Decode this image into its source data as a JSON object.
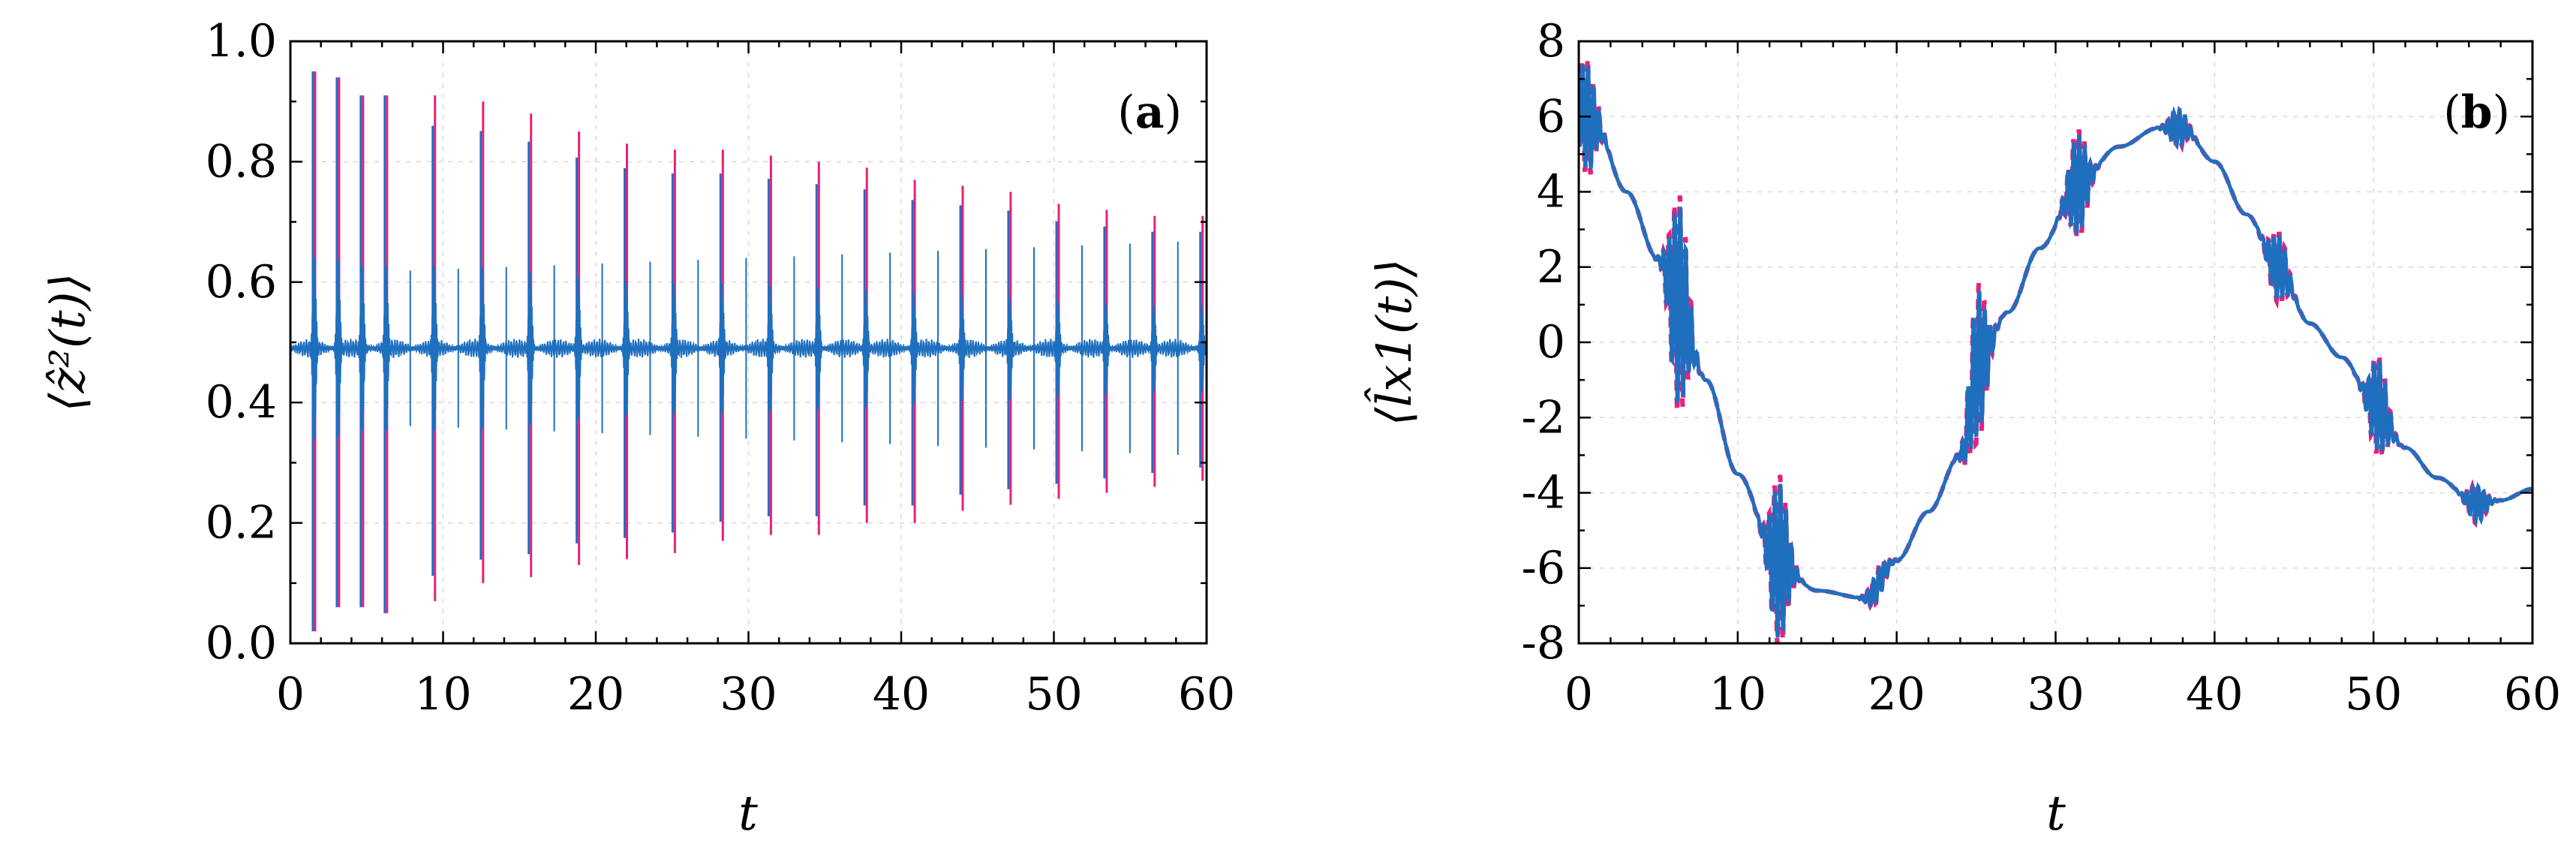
{
  "colors": {
    "series_a": "#e8207a",
    "series_b": "#1f6fbf",
    "frame": "#000000"
  },
  "chart_data": [
    {
      "type": "line",
      "panel_label": "a",
      "xlabel": "t",
      "ylabel": "⟨ẑ²(t)⟩",
      "xlim": [
        0,
        60
      ],
      "ylim": [
        0,
        1
      ],
      "xticks": [
        0,
        10,
        20,
        30,
        40,
        50,
        60
      ],
      "xtick_labels": [
        "0",
        "10",
        "20",
        "30",
        "40",
        "50",
        "60"
      ],
      "yticks": [
        0,
        0.2,
        0.4,
        0.6,
        0.8,
        1.0
      ],
      "ytick_labels": [
        "0.0",
        "0.2",
        "0.4",
        "0.6",
        "0.8",
        "1.0"
      ],
      "baseline": 0.49,
      "revival_period": 1.57,
      "revival_peaks": {
        "t": [
          1.57,
          3.14,
          4.71,
          6.28,
          9.42,
          12.57,
          15.71,
          18.85,
          21.99,
          25.13,
          28.27,
          31.42,
          34.56,
          37.7,
          40.84,
          43.98,
          47.12,
          50.27,
          53.41,
          56.55,
          59.69
        ],
        "max": [
          0.95,
          0.94,
          0.91,
          0.91,
          0.91,
          0.9,
          0.88,
          0.85,
          0.83,
          0.82,
          0.82,
          0.81,
          0.8,
          0.79,
          0.77,
          0.76,
          0.75,
          0.73,
          0.72,
          0.71,
          0.71
        ],
        "min": [
          0.02,
          0.06,
          0.06,
          0.05,
          0.07,
          0.1,
          0.11,
          0.13,
          0.14,
          0.15,
          0.17,
          0.18,
          0.18,
          0.2,
          0.2,
          0.22,
          0.23,
          0.24,
          0.25,
          0.26,
          0.27
        ]
      },
      "series": [
        {
          "name": "pink",
          "color": "#e8207a"
        },
        {
          "name": "blue",
          "color": "#1f6fbf"
        }
      ]
    },
    {
      "type": "line",
      "panel_label": "b",
      "xlabel": "t",
      "ylabel": "⟨l̂x1(t)⟩",
      "xlim": [
        0,
        60
      ],
      "ylim": [
        -8,
        8
      ],
      "xticks": [
        0,
        10,
        20,
        30,
        40,
        50,
        60
      ],
      "xtick_labels": [
        "0",
        "10",
        "20",
        "30",
        "40",
        "50",
        "60"
      ],
      "yticks": [
        -8,
        -6,
        -4,
        -2,
        0,
        2,
        4,
        6,
        8
      ],
      "ytick_labels": [
        "-8",
        "-6",
        "-4",
        "-2",
        "0",
        "2",
        "4",
        "6",
        "8"
      ],
      "envelope": {
        "t": [
          0,
          1,
          3,
          5,
          6.3,
          8,
          10,
          12.5,
          15,
          18,
          20,
          22,
          24,
          25.2,
          27,
          29,
          31.4,
          34,
          36.5,
          38,
          40,
          42,
          44,
          46,
          48,
          50,
          52,
          54,
          56.5,
          58,
          60
        ],
        "value": [
          6.2,
          5.8,
          4.0,
          2.2,
          1.0,
          -1.0,
          -3.5,
          -5.8,
          -6.6,
          -6.8,
          -5.8,
          -4.5,
          -3.0,
          -0.5,
          0.8,
          2.5,
          4.2,
          5.2,
          5.7,
          5.7,
          4.8,
          3.4,
          2.0,
          0.5,
          -0.4,
          -1.6,
          -2.8,
          -3.6,
          -4.3,
          -4.2,
          -3.9
        ]
      },
      "oscillation_bursts": {
        "t": [
          0.5,
          6.3,
          12.6,
          18.8,
          25.1,
          31.4,
          37.7,
          44.0,
          50.3,
          56.5
        ],
        "amplitude": [
          1.5,
          2.8,
          2.2,
          0.4,
          2.0,
          1.4,
          0.5,
          0.9,
          1.3,
          0.5
        ]
      },
      "series": [
        {
          "name": "pink-dashed",
          "color": "#e8207a",
          "style": "dashed"
        },
        {
          "name": "blue-solid",
          "color": "#1f6fbf",
          "style": "solid"
        }
      ]
    }
  ]
}
